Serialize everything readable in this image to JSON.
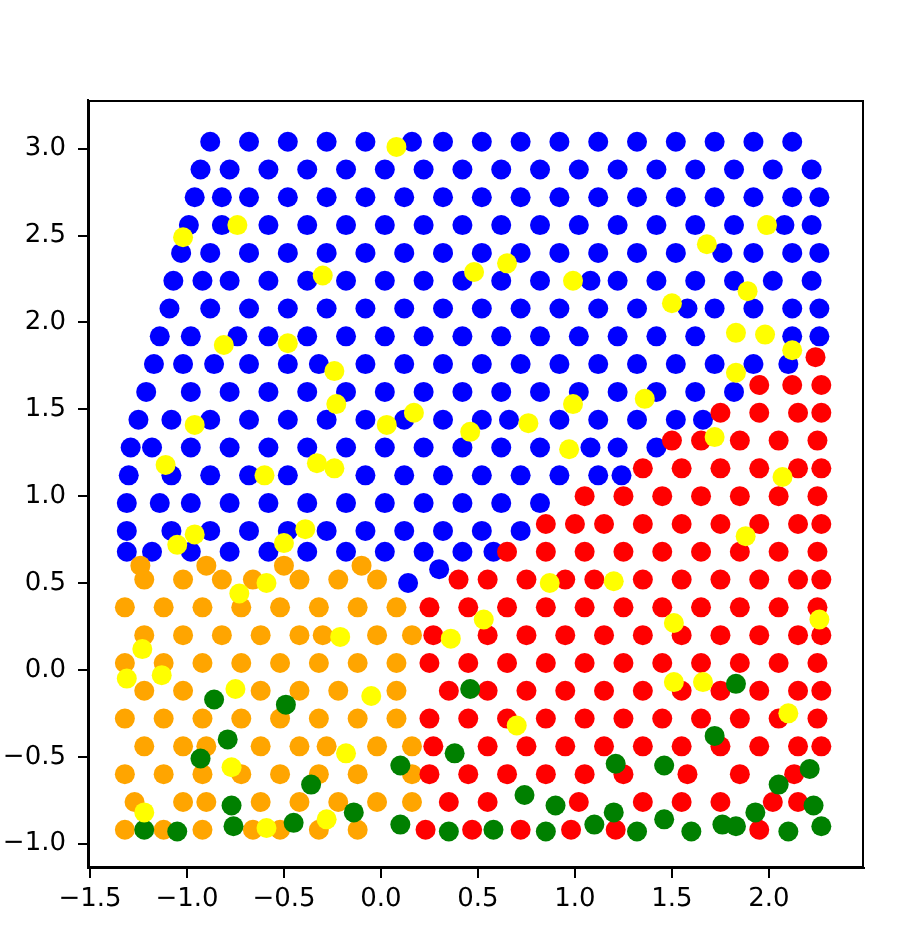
{
  "chart_data": {
    "type": "scatter",
    "marker": "circle",
    "xlim": [
      -1.51,
      2.49
    ],
    "ylim": [
      -1.14,
      3.28
    ],
    "xticks": [
      {
        "value": -1.5,
        "label": "−1.5"
      },
      {
        "value": -1,
        "label": "−1.0"
      },
      {
        "value": -0.5,
        "label": "−0.5"
      },
      {
        "value": 0,
        "label": "0.0"
      },
      0.5,
      {
        "value": 1,
        "label": "1.0"
      },
      1.5,
      {
        "value": 2,
        "label": "2.0"
      }
    ],
    "yticks": [
      {
        "value": -1,
        "label": "−1.0"
      },
      {
        "value": -0.5,
        "label": "−0.5"
      },
      {
        "value": 0,
        "label": "0.0"
      },
      0.5,
      {
        "value": 1,
        "label": "1.0"
      },
      1.5,
      {
        "value": 2,
        "label": "2.0"
      },
      2.5,
      {
        "value": 3,
        "label": "3.0"
      }
    ],
    "series": [
      {
        "color": "#0000ff",
        "x": [
          -0.88,
          -0.68,
          -0.48,
          -0.28,
          -0.08,
          0.16,
          0.32,
          0.52,
          0.72,
          0.92,
          1.12,
          1.32,
          1.52,
          1.72,
          1.92,
          2.12,
          -0.93,
          -0.78,
          -0.58,
          -0.38,
          -0.18,
          0.02,
          0.22,
          0.42,
          0.62,
          0.82,
          1.02,
          1.22,
          1.42,
          1.62,
          1.82,
          2.02,
          2.22,
          -0.96,
          -0.82,
          -0.68,
          -0.48,
          -0.28,
          -0.08,
          0.12,
          0.32,
          0.52,
          0.72,
          0.92,
          1.12,
          1.32,
          1.52,
          1.72,
          1.92,
          2.12,
          2.26,
          -0.99,
          -0.82,
          -0.58,
          -0.38,
          -0.18,
          0.02,
          0.22,
          0.42,
          0.62,
          0.82,
          1.02,
          1.22,
          1.42,
          1.62,
          1.82,
          2.08,
          2.22,
          -1.03,
          -0.88,
          -0.68,
          -0.48,
          -0.28,
          -0.08,
          0.12,
          0.32,
          0.52,
          0.72,
          0.92,
          1.12,
          1.32,
          1.52,
          1.76,
          1.92,
          2.12,
          2.26,
          -1.07,
          -0.92,
          -0.78,
          -0.58,
          -0.38,
          -0.18,
          0.02,
          0.22,
          0.42,
          0.62,
          0.82,
          1.08,
          1.22,
          1.42,
          1.62,
          1.82,
          2.02,
          2.22,
          -1.09,
          -0.88,
          -0.68,
          -0.48,
          -0.28,
          -0.08,
          0.12,
          0.32,
          0.52,
          0.72,
          0.92,
          1.12,
          1.32,
          1.58,
          1.72,
          1.92,
          2.12,
          2.26,
          -1.14,
          -0.98,
          -0.74,
          -0.58,
          -0.38,
          -0.18,
          0.02,
          0.22,
          0.42,
          0.62,
          0.82,
          1.02,
          1.22,
          1.42,
          1.62,
          2.12,
          2.26,
          -1.17,
          -1.02,
          -0.86,
          -0.68,
          -0.48,
          -0.32,
          -0.08,
          0.12,
          0.32,
          0.52,
          0.72,
          0.92,
          1.12,
          1.32,
          1.52,
          1.72,
          1.92,
          2.1,
          -1.21,
          -0.98,
          -0.78,
          -0.58,
          -0.38,
          -0.18,
          0.02,
          0.22,
          0.42,
          0.62,
          0.82,
          1.02,
          1.22,
          1.42,
          1.62,
          1.82,
          -1.25,
          -1.08,
          -0.88,
          -0.68,
          -0.48,
          -0.28,
          -0.08,
          0.12,
          0.32,
          0.52,
          0.66,
          0.92,
          1.12,
          1.32,
          1.52,
          1.66,
          -1.29,
          -1.18,
          -0.98,
          -0.78,
          -0.58,
          -0.38,
          -0.18,
          0.02,
          0.22,
          0.42,
          0.62,
          0.82,
          1.08,
          1.22,
          1.42,
          -1.3,
          -1.08,
          -0.88,
          -0.68,
          -0.48,
          -0.08,
          0.12,
          0.32,
          0.52,
          0.72,
          0.92,
          1.12,
          1.24,
          -1.31,
          -1.14,
          -0.98,
          -0.78,
          -0.58,
          -0.38,
          -0.18,
          0.02,
          0.22,
          0.42,
          0.62,
          0.82,
          -1.31,
          -1.08,
          -0.88,
          -0.68,
          -0.48,
          -0.28,
          -0.08,
          0.12,
          0.32,
          0.52,
          0.72,
          -1.31,
          -1.18,
          -0.98,
          -0.78,
          -0.58,
          -0.38,
          -0.18,
          0.02,
          0.22,
          0.42,
          0.58,
          0.14,
          0.3
        ],
        "values": [
          3.04,
          3.04,
          3.04,
          3.04,
          3.04,
          3.04,
          3.04,
          3.04,
          3.04,
          3.04,
          3.04,
          3.04,
          3.04,
          3.04,
          3.04,
          3.04,
          2.88,
          2.88,
          2.88,
          2.88,
          2.88,
          2.88,
          2.88,
          2.88,
          2.88,
          2.88,
          2.88,
          2.88,
          2.88,
          2.88,
          2.88,
          2.88,
          2.88,
          2.72,
          2.72,
          2.72,
          2.72,
          2.72,
          2.72,
          2.72,
          2.72,
          2.72,
          2.72,
          2.72,
          2.72,
          2.72,
          2.72,
          2.72,
          2.72,
          2.72,
          2.72,
          2.56,
          2.56,
          2.56,
          2.56,
          2.56,
          2.56,
          2.56,
          2.56,
          2.56,
          2.56,
          2.56,
          2.56,
          2.56,
          2.56,
          2.56,
          2.56,
          2.56,
          2.4,
          2.4,
          2.4,
          2.4,
          2.4,
          2.4,
          2.4,
          2.4,
          2.4,
          2.4,
          2.4,
          2.4,
          2.4,
          2.4,
          2.4,
          2.4,
          2.4,
          2.4,
          2.24,
          2.24,
          2.24,
          2.24,
          2.24,
          2.24,
          2.24,
          2.24,
          2.24,
          2.24,
          2.24,
          2.24,
          2.24,
          2.24,
          2.24,
          2.24,
          2.24,
          2.24,
          2.08,
          2.08,
          2.08,
          2.08,
          2.08,
          2.08,
          2.08,
          2.08,
          2.08,
          2.08,
          2.08,
          2.08,
          2.08,
          2.08,
          2.08,
          2.08,
          2.08,
          2.08,
          1.92,
          1.92,
          1.92,
          1.92,
          1.92,
          1.92,
          1.92,
          1.92,
          1.92,
          1.92,
          1.92,
          1.92,
          1.92,
          1.92,
          1.92,
          1.92,
          1.92,
          1.76,
          1.76,
          1.76,
          1.76,
          1.76,
          1.76,
          1.76,
          1.76,
          1.76,
          1.76,
          1.76,
          1.76,
          1.76,
          1.76,
          1.76,
          1.76,
          1.76,
          1.76,
          1.6,
          1.6,
          1.6,
          1.6,
          1.6,
          1.6,
          1.6,
          1.6,
          1.6,
          1.6,
          1.6,
          1.6,
          1.6,
          1.6,
          1.6,
          1.6,
          1.44,
          1.44,
          1.44,
          1.44,
          1.44,
          1.44,
          1.44,
          1.44,
          1.44,
          1.44,
          1.44,
          1.44,
          1.44,
          1.44,
          1.44,
          1.44,
          1.28,
          1.28,
          1.28,
          1.28,
          1.28,
          1.28,
          1.28,
          1.28,
          1.28,
          1.28,
          1.28,
          1.28,
          1.28,
          1.28,
          1.28,
          1.12,
          1.12,
          1.12,
          1.12,
          1.12,
          1.12,
          1.12,
          1.12,
          1.12,
          1.12,
          1.12,
          1.12,
          1.12,
          0.96,
          0.96,
          0.96,
          0.96,
          0.96,
          0.96,
          0.96,
          0.96,
          0.96,
          0.96,
          0.96,
          0.96,
          0.8,
          0.8,
          0.8,
          0.8,
          0.8,
          0.8,
          0.8,
          0.8,
          0.8,
          0.8,
          0.8,
          0.68,
          0.68,
          0.68,
          0.68,
          0.68,
          0.68,
          0.68,
          0.68,
          0.68,
          0.68,
          0.68,
          0.5,
          0.58
        ]
      },
      {
        "color": "#ffa500",
        "x": [
          -1.32,
          -1.12,
          -0.92,
          -0.66,
          -0.52,
          -0.32,
          -0.12,
          -1.27,
          -1.02,
          -0.9,
          -0.62,
          -0.42,
          -0.22,
          -0.02,
          0.16,
          -1.32,
          -1.12,
          -0.92,
          -0.72,
          -0.52,
          -0.32,
          -0.12,
          0.16,
          -1.22,
          -1.02,
          -0.9,
          -0.62,
          -0.42,
          -0.28,
          -0.02,
          0.16,
          -1.32,
          -1.12,
          -0.92,
          -0.72,
          -0.52,
          -0.32,
          -0.12,
          0.08,
          -1.22,
          -1.02,
          -0.62,
          -0.42,
          -0.22,
          0.08,
          -1.32,
          -1.12,
          -0.92,
          -0.72,
          -0.52,
          -0.32,
          -0.12,
          0.08,
          -1.22,
          -1.02,
          -0.82,
          -0.62,
          -0.42,
          -0.3,
          -0.02,
          0.16,
          -1.32,
          -1.12,
          -0.92,
          -0.72,
          -0.52,
          -0.32,
          -0.12,
          0.08,
          -1.22,
          -1.02,
          -0.82,
          -0.66,
          -0.42,
          -0.22,
          -0.02,
          -1.24,
          -0.9,
          -0.5,
          -0.1
        ],
        "values": [
          -0.92,
          -0.92,
          -0.92,
          -0.92,
          -0.92,
          -0.92,
          -0.92,
          -0.76,
          -0.76,
          -0.76,
          -0.76,
          -0.76,
          -0.76,
          -0.76,
          -0.76,
          -0.6,
          -0.6,
          -0.6,
          -0.6,
          -0.6,
          -0.6,
          -0.6,
          -0.6,
          -0.44,
          -0.44,
          -0.44,
          -0.44,
          -0.44,
          -0.44,
          -0.44,
          -0.44,
          -0.28,
          -0.28,
          -0.28,
          -0.28,
          -0.28,
          -0.28,
          -0.28,
          -0.28,
          -0.12,
          -0.12,
          -0.12,
          -0.12,
          -0.12,
          -0.12,
          0.04,
          0.04,
          0.04,
          0.04,
          0.04,
          0.04,
          0.04,
          0.04,
          0.2,
          0.2,
          0.2,
          0.2,
          0.2,
          0.2,
          0.2,
          0.2,
          0.36,
          0.36,
          0.36,
          0.36,
          0.36,
          0.36,
          0.36,
          0.36,
          0.52,
          0.52,
          0.52,
          0.52,
          0.52,
          0.52,
          0.52,
          0.6,
          0.6,
          0.6,
          0.6
        ]
      },
      {
        "color": "#ff0000",
        "x": [
          0.23,
          0.47,
          0.72,
          0.98,
          1.21,
          1.95,
          0.35,
          0.55,
          1.02,
          1.35,
          1.55,
          1.75,
          2.02,
          2.15,
          0.25,
          0.45,
          0.65,
          0.85,
          1.05,
          1.25,
          1.58,
          1.85,
          2.13,
          0.27,
          0.55,
          0.75,
          0.95,
          1.15,
          1.35,
          1.55,
          1.75,
          1.95,
          2.15,
          2.27,
          0.25,
          0.45,
          0.65,
          0.85,
          1.05,
          1.25,
          1.45,
          1.65,
          1.85,
          2.05,
          2.25,
          0.35,
          0.55,
          0.75,
          0.95,
          1.15,
          1.35,
          1.55,
          1.75,
          1.95,
          2.15,
          2.27,
          0.25,
          0.45,
          0.65,
          0.85,
          1.05,
          1.25,
          1.45,
          1.65,
          1.85,
          2.05,
          2.25,
          0.27,
          0.55,
          0.75,
          0.95,
          1.15,
          1.35,
          1.55,
          1.75,
          1.95,
          2.15,
          2.27,
          0.25,
          0.45,
          0.65,
          0.85,
          1.05,
          1.25,
          1.45,
          1.65,
          1.85,
          2.05,
          2.25,
          0.4,
          0.55,
          0.75,
          0.95,
          1.1,
          1.35,
          1.55,
          1.75,
          1.95,
          2.15,
          2.27,
          0.65,
          0.85,
          1.05,
          1.25,
          1.45,
          1.65,
          1.85,
          2.05,
          2.25,
          0.85,
          1.0,
          1.15,
          1.35,
          1.55,
          1.75,
          1.95,
          2.15,
          2.27,
          1.05,
          1.25,
          1.45,
          1.65,
          1.85,
          2.05,
          2.25,
          1.35,
          1.55,
          1.75,
          1.95,
          2.15,
          2.27,
          1.5,
          1.65,
          1.85,
          2.05,
          2.25,
          1.75,
          1.95,
          2.15,
          2.27,
          1.95,
          2.12,
          2.27,
          2.24
        ],
        "values": [
          -0.92,
          -0.92,
          -0.92,
          -0.92,
          -0.92,
          -0.92,
          -0.76,
          -0.76,
          -0.76,
          -0.76,
          -0.76,
          -0.76,
          -0.76,
          -0.76,
          -0.6,
          -0.6,
          -0.6,
          -0.6,
          -0.6,
          -0.6,
          -0.6,
          -0.6,
          -0.6,
          -0.44,
          -0.44,
          -0.44,
          -0.44,
          -0.44,
          -0.44,
          -0.44,
          -0.44,
          -0.44,
          -0.44,
          -0.44,
          -0.28,
          -0.28,
          -0.28,
          -0.28,
          -0.28,
          -0.28,
          -0.28,
          -0.28,
          -0.28,
          -0.28,
          -0.28,
          -0.12,
          -0.12,
          -0.12,
          -0.12,
          -0.12,
          -0.12,
          -0.12,
          -0.12,
          -0.12,
          -0.12,
          -0.12,
          0.04,
          0.04,
          0.04,
          0.04,
          0.04,
          0.04,
          0.04,
          0.04,
          0.04,
          0.04,
          0.04,
          0.2,
          0.2,
          0.2,
          0.2,
          0.2,
          0.2,
          0.2,
          0.2,
          0.2,
          0.2,
          0.2,
          0.36,
          0.36,
          0.36,
          0.36,
          0.36,
          0.36,
          0.36,
          0.36,
          0.36,
          0.36,
          0.36,
          0.52,
          0.52,
          0.52,
          0.52,
          0.52,
          0.52,
          0.52,
          0.52,
          0.52,
          0.52,
          0.52,
          0.68,
          0.68,
          0.68,
          0.68,
          0.68,
          0.68,
          0.68,
          0.68,
          0.68,
          0.84,
          0.84,
          0.84,
          0.84,
          0.84,
          0.84,
          0.84,
          0.84,
          0.84,
          1.0,
          1.0,
          1.0,
          1.0,
          1.0,
          1.0,
          1.0,
          1.16,
          1.16,
          1.16,
          1.16,
          1.16,
          1.16,
          1.32,
          1.32,
          1.32,
          1.32,
          1.32,
          1.48,
          1.48,
          1.48,
          1.48,
          1.64,
          1.64,
          1.64,
          1.8
        ]
      },
      {
        "color": "#008000",
        "x": [
          -1.22,
          -0.77,
          -0.76,
          -0.45,
          -0.36,
          -0.93,
          -0.79,
          -0.86,
          -0.49,
          -0.14,
          0.1,
          0.1,
          0.38,
          0.46,
          0.58,
          0.74,
          0.9,
          1.1,
          1.2,
          1.21,
          1.46,
          1.46,
          1.72,
          1.76,
          1.83,
          1.93,
          2.05,
          2.21,
          2.23,
          1.83,
          0.35,
          0.85,
          1.32,
          1.6,
          2.1,
          2.27,
          -1.05
        ],
        "values": [
          -0.92,
          -0.78,
          -0.9,
          -0.88,
          -0.66,
          -0.51,
          -0.4,
          -0.17,
          -0.2,
          -0.82,
          -0.55,
          -0.89,
          -0.48,
          -0.11,
          -0.92,
          -0.72,
          -0.78,
          -0.89,
          -0.82,
          -0.54,
          -0.55,
          -0.86,
          -0.38,
          -0.89,
          -0.9,
          -0.82,
          -0.66,
          -0.57,
          -0.78,
          -0.08,
          -0.93,
          -0.93,
          -0.93,
          -0.93,
          -0.93,
          -0.9,
          -0.93
        ]
      },
      {
        "color": "#ffff00",
        "x": [
          -1.02,
          -0.74,
          -0.81,
          -0.48,
          -0.24,
          -0.23,
          -0.3,
          -1.11,
          -0.33,
          -0.6,
          -0.96,
          -1.05,
          -0.73,
          -0.59,
          -1.31,
          -1.23,
          -1.13,
          -0.75,
          -0.77,
          -1.22,
          -0.59,
          -0.96,
          -0.39,
          -0.5,
          0.08,
          0.48,
          0.65,
          0.99,
          1.5,
          1.89,
          1.99,
          1.83,
          1.98,
          2.12,
          1.83,
          1.68,
          0.17,
          0.03,
          0.46,
          0.76,
          0.99,
          1.36,
          0.97,
          1.72,
          2.07,
          1.88,
          1.2,
          0.53,
          0.36,
          1.51,
          1.51,
          1.66,
          0.7,
          -0.21,
          -0.18,
          -0.05,
          0.87,
          2.26,
          2.1,
          -0.24,
          -0.28
        ],
        "values": [
          2.49,
          2.56,
          1.87,
          1.88,
          1.72,
          1.53,
          2.27,
          1.18,
          1.19,
          1.12,
          1.41,
          0.72,
          0.44,
          0.5,
          -0.05,
          0.12,
          -0.03,
          -0.11,
          -0.56,
          -0.82,
          -0.91,
          0.78,
          0.81,
          0.73,
          3.01,
          2.29,
          2.34,
          2.24,
          2.11,
          2.18,
          2.56,
          1.94,
          1.93,
          1.84,
          1.71,
          2.45,
          1.48,
          1.41,
          1.37,
          1.42,
          1.53,
          1.56,
          1.27,
          1.34,
          1.11,
          0.77,
          0.51,
          0.29,
          0.18,
          0.27,
          -0.07,
          -0.07,
          -0.32,
          0.19,
          -0.48,
          -0.15,
          0.5,
          0.29,
          -0.25,
          1.16,
          -0.86
        ]
      }
    ]
  }
}
